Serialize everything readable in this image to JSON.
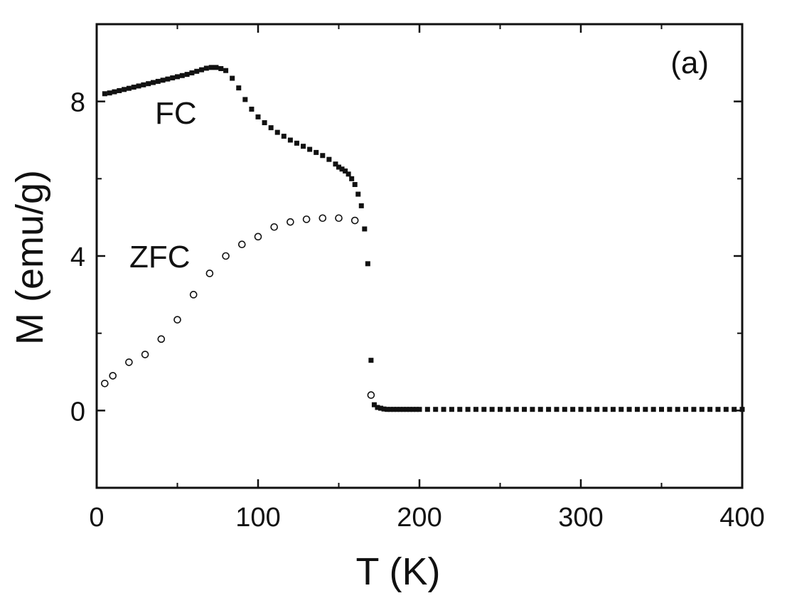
{
  "chart_data": {
    "type": "scatter",
    "title": "",
    "panel_label": "(a)",
    "xlabel": "T (K)",
    "ylabel": "M (emu/g)",
    "xlim": [
      0,
      400
    ],
    "ylim": [
      -2,
      10
    ],
    "xticks": [
      0,
      100,
      200,
      300,
      400
    ],
    "xtick_labels": [
      "0",
      "100",
      "200",
      "300",
      "400"
    ],
    "yticks": [
      0,
      4,
      8
    ],
    "ytick_labels": [
      "0",
      "4",
      "8"
    ],
    "yminor_ticks": [
      2,
      6
    ],
    "grid": false,
    "series": [
      {
        "name": "FC",
        "marker": "filled-square",
        "color": "#111111",
        "x": [
          5,
          8,
          11,
          14,
          17,
          20,
          23,
          26,
          29,
          32,
          35,
          38,
          41,
          44,
          47,
          50,
          53,
          56,
          59,
          62,
          65,
          68,
          71,
          74,
          77,
          80,
          84,
          88,
          92,
          96,
          100,
          104,
          108,
          112,
          116,
          120,
          124,
          128,
          132,
          136,
          140,
          144,
          148,
          150,
          152,
          154,
          156,
          158,
          160,
          162,
          164,
          166,
          168,
          170,
          172,
          174,
          176,
          178,
          180,
          182,
          184,
          186,
          188,
          190,
          192,
          194,
          196,
          198,
          200,
          205,
          210,
          215,
          220,
          225,
          230,
          235,
          240,
          245,
          250,
          255,
          260,
          265,
          270,
          275,
          280,
          285,
          290,
          295,
          300,
          305,
          310,
          315,
          320,
          325,
          330,
          335,
          340,
          345,
          350,
          355,
          360,
          365,
          370,
          375,
          380,
          385,
          390,
          395,
          400
        ],
        "y": [
          8.2,
          8.22,
          8.25,
          8.28,
          8.31,
          8.34,
          8.37,
          8.4,
          8.43,
          8.46,
          8.49,
          8.52,
          8.55,
          8.58,
          8.61,
          8.64,
          8.67,
          8.7,
          8.74,
          8.78,
          8.82,
          8.86,
          8.88,
          8.88,
          8.85,
          8.8,
          8.6,
          8.35,
          8.05,
          7.8,
          7.6,
          7.45,
          7.32,
          7.2,
          7.1,
          7.0,
          6.92,
          6.84,
          6.76,
          6.68,
          6.6,
          6.5,
          6.38,
          6.3,
          6.25,
          6.2,
          6.12,
          6.0,
          5.85,
          5.6,
          5.3,
          4.7,
          3.8,
          1.3,
          0.15,
          0.08,
          0.06,
          0.04,
          0.03,
          0.03,
          0.03,
          0.03,
          0.03,
          0.03,
          0.03,
          0.03,
          0.03,
          0.03,
          0.03,
          0.03,
          0.03,
          0.03,
          0.03,
          0.03,
          0.03,
          0.03,
          0.03,
          0.03,
          0.03,
          0.03,
          0.03,
          0.03,
          0.03,
          0.03,
          0.03,
          0.03,
          0.03,
          0.03,
          0.03,
          0.03,
          0.03,
          0.03,
          0.03,
          0.03,
          0.03,
          0.03,
          0.03,
          0.03,
          0.03,
          0.03,
          0.03,
          0.03,
          0.03,
          0.03,
          0.03,
          0.03,
          0.03,
          0.03,
          0.03
        ]
      },
      {
        "name": "ZFC",
        "marker": "open-circle",
        "color": "#111111",
        "x": [
          5,
          10,
          20,
          30,
          40,
          50,
          60,
          70,
          80,
          90,
          100,
          110,
          120,
          130,
          140,
          150,
          160,
          170
        ],
        "y": [
          0.7,
          0.9,
          1.25,
          1.45,
          1.85,
          2.35,
          3.0,
          3.55,
          4.0,
          4.3,
          4.5,
          4.75,
          4.88,
          4.95,
          4.98,
          4.98,
          4.92,
          0.4
        ]
      }
    ],
    "annotations": [
      {
        "text": "FC",
        "series": "FC"
      },
      {
        "text": "ZFC",
        "series": "ZFC"
      }
    ]
  }
}
